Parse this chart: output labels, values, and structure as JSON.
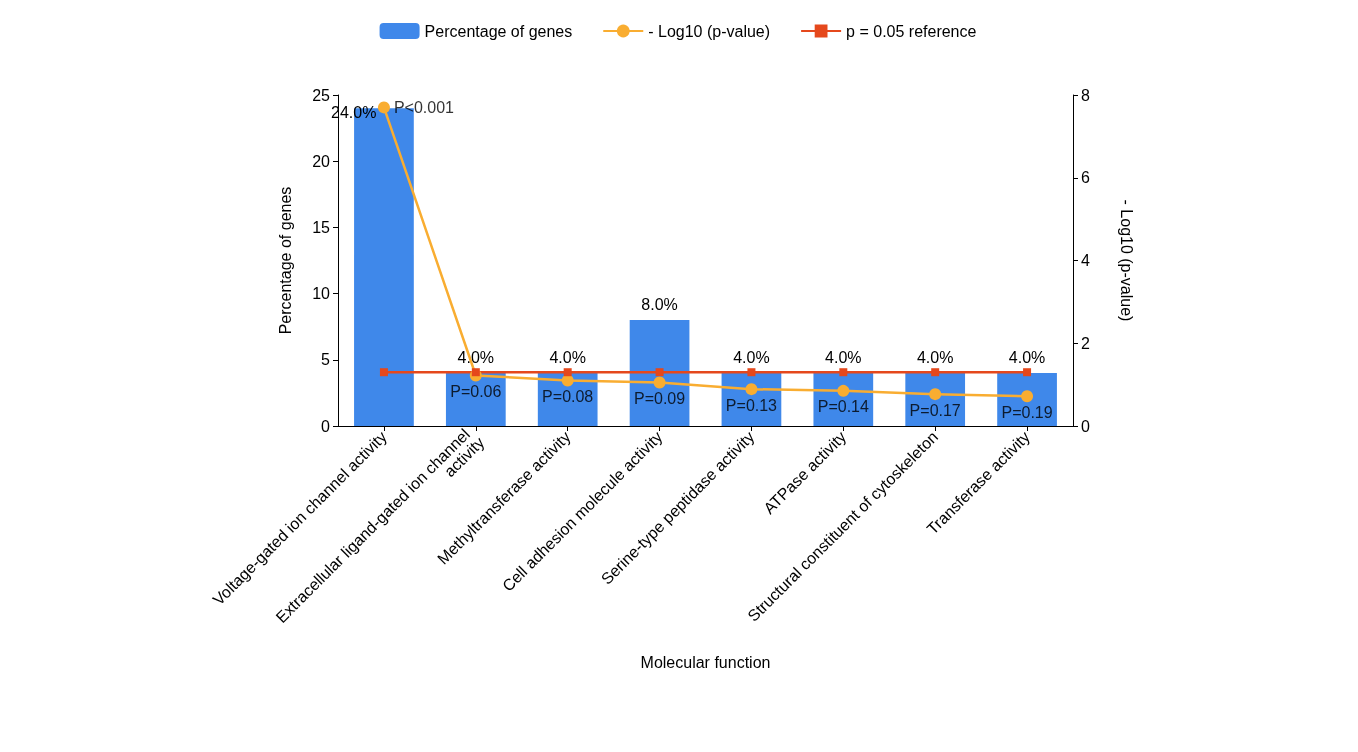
{
  "chart_data": {
    "type": "bar",
    "xlabel": "Molecular function",
    "ylabel": "Percentage of genes",
    "y2label": "- Log10 (p-value)",
    "categories": [
      "Voltage-gated ion channel activity",
      "Extracellular ligand-gated ion channel activity",
      "Methyltransferase activity",
      "Cell adhesion molecule activity",
      "Serine-type peptidase activity",
      "ATPase activity",
      "Structural constituent of cytoskeleton",
      "Transferase activity"
    ],
    "series": [
      {
        "name": "Percentage of genes",
        "type": "bar",
        "color": "#3f88ea",
        "values": [
          24,
          4,
          4,
          8,
          4,
          4,
          4,
          4
        ],
        "value_labels": [
          "24.0%",
          "4.0%",
          "4.0%",
          "8.0%",
          "4.0%",
          "4.0%",
          "4.0%",
          "4.0%"
        ]
      },
      {
        "name": "- Log10 (p-value)",
        "type": "line",
        "axis": "y2",
        "marker": "circle",
        "color": "#f9ad31",
        "values": [
          7.7,
          1.22,
          1.1,
          1.05,
          0.89,
          0.85,
          0.77,
          0.72
        ]
      },
      {
        "name": "p = 0.05 reference",
        "type": "line",
        "axis": "y2",
        "marker": "square",
        "color": "#e5481c",
        "values": [
          1.3,
          1.3,
          1.3,
          1.3,
          1.3,
          1.3,
          1.3,
          1.3
        ]
      }
    ],
    "annotations": [
      "P<0.001",
      "P=0.06",
      "P=0.08",
      "P=0.09",
      "P=0.13",
      "P=0.14",
      "P=0.17",
      "P=0.19"
    ],
    "ylim": [
      0,
      25
    ],
    "yticks": [
      0,
      5,
      10,
      15,
      20,
      25
    ],
    "y2lim": [
      0,
      8
    ],
    "y2ticks": [
      0,
      2,
      4,
      6,
      8
    ],
    "grid": false,
    "legend": "top"
  }
}
